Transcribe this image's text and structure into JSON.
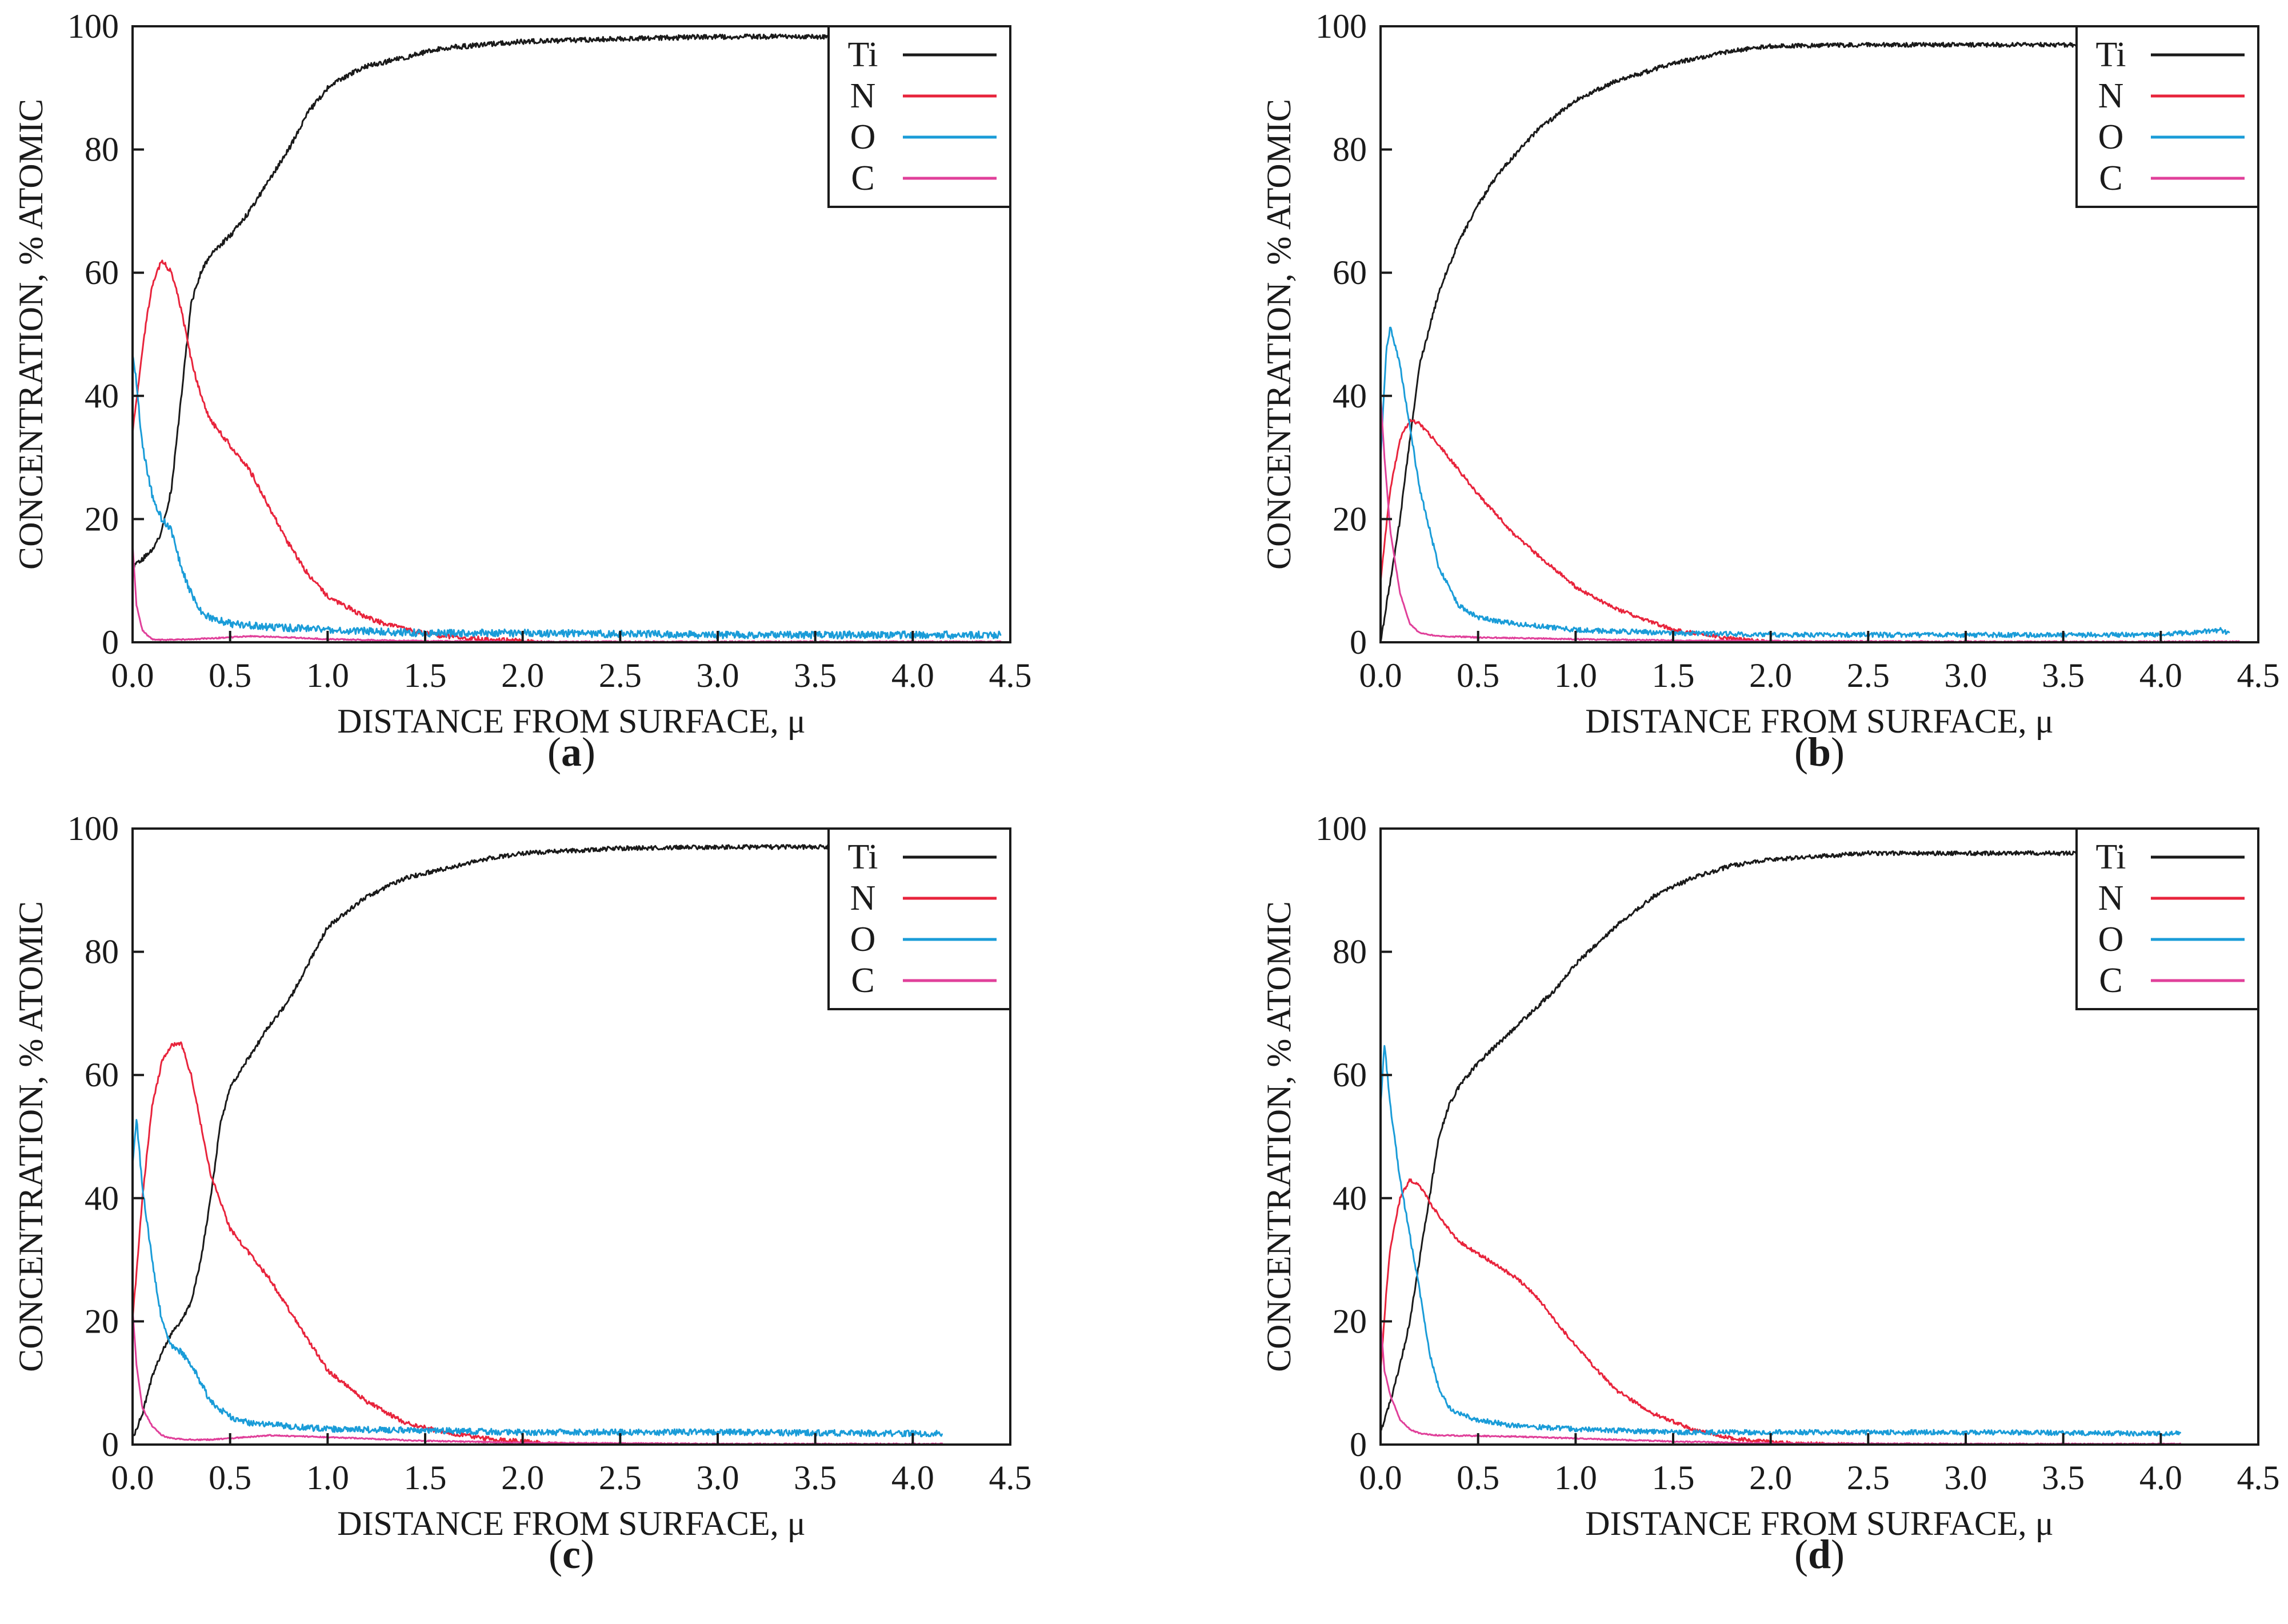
{
  "figure": {
    "panel_count": 4
  },
  "chart_data": [
    {
      "type": "line",
      "panel": "a",
      "caption": "(a)",
      "caption_letter": "a",
      "xlabel": "DISTANCE FROM SURFACE, μ",
      "ylabel": "CONCENTRATION, % ATOMIC",
      "xlim": [
        0,
        4.5
      ],
      "ylim": [
        0,
        100
      ],
      "xticks": [
        "0.0",
        "0.5",
        "1.0",
        "1.5",
        "2.0",
        "2.5",
        "3.0",
        "3.5",
        "4.0",
        "4.5"
      ],
      "yticks": [
        "0",
        "20",
        "40",
        "60",
        "80",
        "100"
      ],
      "grid": false,
      "legend_position": "top-right",
      "series": [
        {
          "name": "Ti",
          "color": "#1a1a1a",
          "noise": 0.4,
          "x": [
            0,
            0.02,
            0.05,
            0.1,
            0.15,
            0.2,
            0.25,
            0.3,
            0.35,
            0.4,
            0.5,
            0.6,
            0.7,
            0.8,
            0.9,
            1.0,
            1.1,
            1.2,
            1.4,
            1.6,
            1.8,
            2.0,
            2.5,
            3.0,
            3.5,
            3.6
          ],
          "y": [
            12,
            13,
            13.5,
            15,
            18,
            25,
            40,
            55,
            60,
            63,
            66,
            70,
            75,
            80,
            86,
            90,
            92,
            93.5,
            95,
            96.5,
            97,
            97.5,
            98,
            98.3,
            98.3,
            98.2
          ]
        },
        {
          "name": "N",
          "color": "#e8243c",
          "noise": 0.4,
          "x": [
            0,
            0.03,
            0.07,
            0.1,
            0.15,
            0.2,
            0.25,
            0.3,
            0.35,
            0.4,
            0.5,
            0.6,
            0.7,
            0.8,
            0.9,
            1.0,
            1.2,
            1.4,
            1.6,
            1.8,
            2.0,
            2.1
          ],
          "y": [
            34,
            42,
            52,
            58,
            62,
            60,
            54,
            46,
            40,
            36,
            32,
            28,
            22,
            16,
            11,
            7.5,
            4,
            2,
            1,
            0.5,
            0.2,
            0
          ]
        },
        {
          "name": "O",
          "color": "#1a9cd8",
          "noise": 0.6,
          "x": [
            0,
            0.02,
            0.05,
            0.1,
            0.15,
            0.2,
            0.25,
            0.3,
            0.35,
            0.4,
            0.5,
            0.7,
            1.0,
            1.5,
            2.0,
            3.0,
            4.0,
            4.45
          ],
          "y": [
            47,
            42,
            32,
            24,
            20,
            18,
            12,
            8,
            5,
            4,
            3,
            2.5,
            2,
            1.5,
            1.5,
            1.2,
            1.2,
            1.2
          ]
        },
        {
          "name": "C",
          "color": "#e0409a",
          "noise": 0.1,
          "x": [
            0,
            0.02,
            0.05,
            0.08,
            0.1,
            0.15,
            0.2,
            0.3,
            0.5,
            0.6,
            0.8,
            1.0,
            1.5,
            2.0,
            3.0,
            4.45
          ],
          "y": [
            16,
            6,
            2,
            1,
            0.5,
            0.4,
            0.4,
            0.5,
            0.8,
            1,
            0.8,
            0.5,
            0.2,
            0.1,
            0.1,
            0.1
          ]
        }
      ]
    },
    {
      "type": "line",
      "panel": "b",
      "caption": "(b)",
      "caption_letter": "b",
      "xlabel": "DISTANCE FROM SURFACE, μ",
      "ylabel": "CONCENTRATION, % ATOMIC",
      "xlim": [
        0,
        4.5
      ],
      "ylim": [
        0,
        100
      ],
      "xticks": [
        "0.0",
        "0.5",
        "1.0",
        "1.5",
        "2.0",
        "2.5",
        "3.0",
        "3.5",
        "4.0",
        "4.5"
      ],
      "yticks": [
        "0",
        "20",
        "40",
        "60",
        "80",
        "100"
      ],
      "grid": false,
      "legend_position": "top-right",
      "series": [
        {
          "name": "Ti",
          "color": "#1a1a1a",
          "noise": 0.35,
          "x": [
            0,
            0.05,
            0.1,
            0.15,
            0.2,
            0.3,
            0.4,
            0.5,
            0.6,
            0.8,
            1.0,
            1.2,
            1.5,
            1.8,
            2.0,
            2.5,
            3.0,
            3.5,
            3.6
          ],
          "y": [
            0,
            10,
            20,
            33,
            45,
            57,
            65,
            71,
            76,
            83,
            88,
            91,
            94,
            96,
            96.8,
            97,
            97,
            97,
            97
          ]
        },
        {
          "name": "N",
          "color": "#e8243c",
          "noise": 0.3,
          "x": [
            0,
            0.05,
            0.1,
            0.15,
            0.2,
            0.3,
            0.4,
            0.5,
            0.7,
            1.0,
            1.2,
            1.5,
            1.8,
            2.0
          ],
          "y": [
            10,
            25,
            33,
            36,
            35.5,
            32,
            28,
            24,
            17,
            9,
            5.5,
            2,
            0.6,
            0
          ]
        },
        {
          "name": "O",
          "color": "#1a9cd8",
          "noise": 0.4,
          "x": [
            0,
            0.03,
            0.05,
            0.1,
            0.15,
            0.2,
            0.3,
            0.4,
            0.5,
            0.7,
            1.0,
            1.5,
            2.0,
            3.0,
            4.0,
            4.3,
            4.35
          ],
          "y": [
            30,
            48,
            51,
            45,
            35,
            25,
            12,
            6,
            4,
            3,
            2,
            1.5,
            1.2,
            1.2,
            1.2,
            2,
            1.5
          ]
        },
        {
          "name": "C",
          "color": "#e0409a",
          "noise": 0.1,
          "x": [
            0,
            0.02,
            0.05,
            0.1,
            0.15,
            0.2,
            0.3,
            0.5,
            1.0,
            1.5,
            2.0,
            3.0,
            4.0,
            4.4
          ],
          "y": [
            40,
            30,
            18,
            8,
            3,
            1.5,
            1,
            0.8,
            0.5,
            0.3,
            0.2,
            0.1,
            0.1,
            0.1
          ]
        }
      ]
    },
    {
      "type": "line",
      "panel": "c",
      "caption": "(c)",
      "caption_letter": "c",
      "xlabel": "DISTANCE FROM SURFACE, μ",
      "ylabel": "CONCENTRATION, % ATOMIC",
      "xlim": [
        0,
        4.5
      ],
      "ylim": [
        0,
        100
      ],
      "xticks": [
        "0.0",
        "0.5",
        "1.0",
        "1.5",
        "2.0",
        "2.5",
        "3.0",
        "3.5",
        "4.0",
        "4.5"
      ],
      "yticks": [
        "0",
        "20",
        "40",
        "60",
        "80",
        "100"
      ],
      "grid": false,
      "legend_position": "top-right",
      "series": [
        {
          "name": "Ti",
          "color": "#1a1a1a",
          "noise": 0.35,
          "x": [
            0,
            0.05,
            0.1,
            0.15,
            0.2,
            0.25,
            0.3,
            0.35,
            0.4,
            0.45,
            0.5,
            0.6,
            0.7,
            0.8,
            0.9,
            1.0,
            1.2,
            1.4,
            1.6,
            1.8,
            2.0,
            2.5,
            3.0,
            3.5,
            3.6
          ],
          "y": [
            1,
            5,
            11,
            15,
            18,
            20,
            23,
            30,
            40,
            52,
            58,
            63,
            68,
            72,
            78,
            84,
            89,
            92,
            93.5,
            95,
            96,
            96.8,
            97,
            97,
            97
          ]
        },
        {
          "name": "N",
          "color": "#e8243c",
          "noise": 0.35,
          "x": [
            0,
            0.05,
            0.1,
            0.15,
            0.2,
            0.25,
            0.3,
            0.35,
            0.4,
            0.5,
            0.6,
            0.7,
            0.8,
            0.9,
            1.0,
            1.2,
            1.4,
            1.6,
            1.8,
            2.0,
            2.2
          ],
          "y": [
            20,
            40,
            55,
            62,
            65,
            65,
            60,
            52,
            44,
            35,
            31,
            27,
            22,
            17,
            12,
            7,
            3.5,
            2,
            1,
            0.5,
            0
          ]
        },
        {
          "name": "O",
          "color": "#1a9cd8",
          "noise": 0.5,
          "x": [
            0,
            0.02,
            0.05,
            0.1,
            0.15,
            0.2,
            0.25,
            0.3,
            0.35,
            0.4,
            0.5,
            0.6,
            0.8,
            1.0,
            1.5,
            2.0,
            3.0,
            4.0,
            4.15
          ],
          "y": [
            45,
            53,
            42,
            30,
            20,
            16,
            15,
            13,
            10,
            7,
            4.5,
            3.5,
            3,
            2.5,
            2.3,
            2,
            2,
            1.8,
            1.8
          ]
        },
        {
          "name": "C",
          "color": "#e0409a",
          "noise": 0.1,
          "x": [
            0,
            0.02,
            0.05,
            0.1,
            0.15,
            0.2,
            0.3,
            0.4,
            0.5,
            0.7,
            1.0,
            1.5,
            2.0,
            3.0,
            4.0,
            4.15
          ],
          "y": [
            22,
            13,
            6,
            3,
            1.5,
            1,
            0.8,
            0.8,
            1,
            1.5,
            1.2,
            0.6,
            0.3,
            0.1,
            0.1,
            0.1
          ]
        }
      ]
    },
    {
      "type": "line",
      "panel": "d",
      "caption": "(d)",
      "caption_letter": "d",
      "xlabel": "DISTANCE FROM SURFACE, μ",
      "ylabel": "CONCENTRATION, % ATOMIC",
      "xlim": [
        0,
        4.5
      ],
      "ylim": [
        0,
        100
      ],
      "xticks": [
        "0.0",
        "0.5",
        "1.0",
        "1.5",
        "2.0",
        "2.5",
        "3.0",
        "3.5",
        "4.0",
        "4.5"
      ],
      "yticks": [
        "0",
        "20",
        "40",
        "60",
        "80",
        "100"
      ],
      "grid": false,
      "legend_position": "top-right",
      "series": [
        {
          "name": "Ti",
          "color": "#1a1a1a",
          "noise": 0.35,
          "x": [
            0,
            0.05,
            0.1,
            0.15,
            0.2,
            0.25,
            0.3,
            0.35,
            0.4,
            0.5,
            0.6,
            0.7,
            0.8,
            0.9,
            1.0,
            1.2,
            1.4,
            1.6,
            1.8,
            2.0,
            2.5,
            3.0,
            3.5,
            3.6
          ],
          "y": [
            2,
            7,
            13,
            20,
            30,
            40,
            50,
            55,
            58,
            62,
            65,
            68,
            71,
            74,
            78,
            84,
            89,
            92,
            94,
            95,
            96,
            96,
            96,
            96
          ]
        },
        {
          "name": "N",
          "color": "#e8243c",
          "noise": 0.3,
          "x": [
            0,
            0.03,
            0.05,
            0.1,
            0.15,
            0.2,
            0.3,
            0.4,
            0.5,
            0.6,
            0.7,
            0.8,
            0.9,
            1.0,
            1.2,
            1.4,
            1.6,
            1.8,
            2.0,
            2.2,
            2.4
          ],
          "y": [
            12,
            25,
            32,
            40,
            43,
            42,
            37,
            33,
            31,
            29,
            27,
            24,
            20,
            16,
            9,
            5,
            2.5,
            1,
            0.4,
            0.1,
            0
          ]
        },
        {
          "name": "O",
          "color": "#1a9cd8",
          "noise": 0.4,
          "x": [
            0,
            0.02,
            0.05,
            0.1,
            0.15,
            0.2,
            0.25,
            0.3,
            0.35,
            0.4,
            0.5,
            0.7,
            1.0,
            1.5,
            2.0,
            3.0,
            4.0,
            4.1
          ],
          "y": [
            55,
            65,
            55,
            43,
            34,
            25,
            15,
            9,
            6,
            5,
            4,
            3,
            2.5,
            2,
            2,
            2,
            1.8,
            1.8
          ]
        },
        {
          "name": "C",
          "color": "#e0409a",
          "noise": 0.1,
          "x": [
            0,
            0.02,
            0.05,
            0.1,
            0.15,
            0.2,
            0.3,
            0.5,
            0.7,
            1.0,
            1.5,
            2.0,
            3.0,
            4.0,
            4.1
          ],
          "y": [
            20,
            12,
            8,
            4,
            2.5,
            1.8,
            1.5,
            1.4,
            1.3,
            1,
            0.5,
            0.2,
            0.1,
            0.1,
            0.1
          ]
        }
      ]
    }
  ]
}
